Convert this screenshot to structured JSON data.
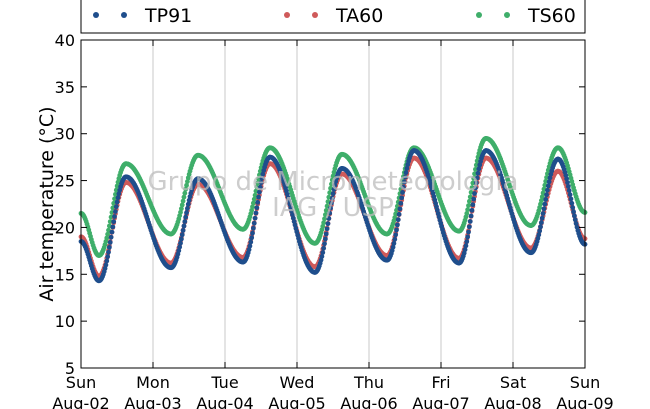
{
  "chart_data": {
    "type": "scatter",
    "title": "",
    "xlabel": "",
    "ylabel": "Air temperature (°C)",
    "ylim": [
      5,
      40
    ],
    "yticks": [
      5,
      10,
      15,
      20,
      25,
      30,
      35,
      40
    ],
    "xlim": [
      "2015-08-02 00:00",
      "2015-08-09 00:00"
    ],
    "xticks": [
      {
        "day": "Sun",
        "date": "Aug-02"
      },
      {
        "day": "Mon",
        "date": "Aug-03"
      },
      {
        "day": "Tue",
        "date": "Aug-04"
      },
      {
        "day": "Wed",
        "date": "Aug-05"
      },
      {
        "day": "Thu",
        "date": "Aug-06"
      },
      {
        "day": "Fri",
        "date": "Aug-07"
      },
      {
        "day": "Sat",
        "date": "Aug-08"
      },
      {
        "day": "Sun",
        "date": "Aug-09"
      }
    ],
    "grid": "vertical",
    "legend_position": "top",
    "watermark": [
      "Grupo de Micrometeorologia",
      "IAG / USP"
    ],
    "x": [
      "Aug-02 00:00",
      "Aug-02 06:00",
      "Aug-02 15:00",
      "Aug-03 06:00",
      "Aug-03 15:00",
      "Aug-04 06:00",
      "Aug-04 15:00",
      "Aug-05 06:00",
      "Aug-05 15:00",
      "Aug-06 06:00",
      "Aug-06 15:00",
      "Aug-07 06:00",
      "Aug-07 15:00",
      "Aug-08 06:00",
      "Aug-08 15:00",
      "Aug-09 00:00"
    ],
    "series": [
      {
        "name": "TP91",
        "color": "#1f4e8c",
        "values": [
          18.5,
          14.3,
          25.4,
          15.7,
          25.2,
          16.3,
          27.5,
          15.2,
          26.3,
          16.5,
          28.2,
          16.2,
          28.2,
          17.3,
          27.3,
          18.2
        ]
      },
      {
        "name": "TA60",
        "color": "#cf5a5a",
        "values": [
          19.0,
          14.8,
          24.8,
          16.2,
          24.6,
          16.8,
          26.8,
          15.8,
          25.7,
          17.0,
          27.4,
          16.7,
          27.4,
          17.8,
          26.0,
          18.8
        ]
      },
      {
        "name": "TS60",
        "color": "#3fae6a",
        "values": [
          21.5,
          17.0,
          26.8,
          19.3,
          27.7,
          19.8,
          28.5,
          18.3,
          27.8,
          19.3,
          28.5,
          19.6,
          29.5,
          20.2,
          28.5,
          21.6
        ]
      }
    ]
  }
}
